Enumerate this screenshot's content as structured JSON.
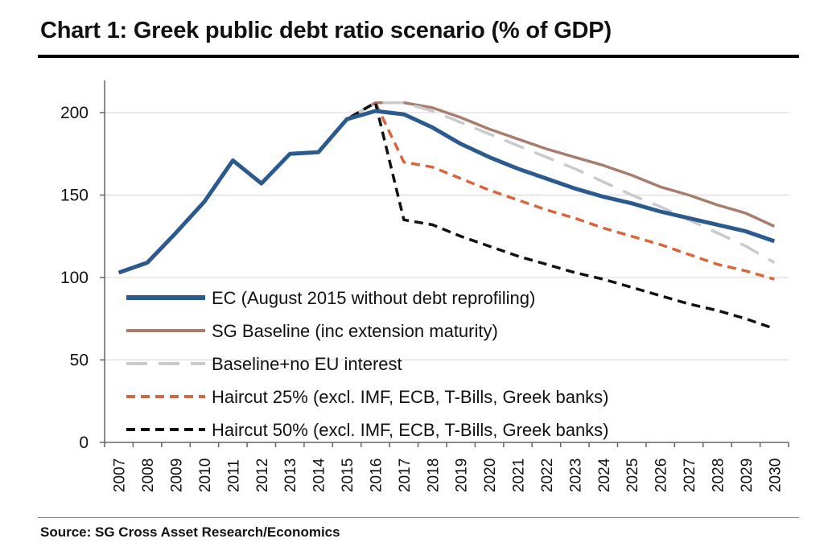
{
  "title": "Chart 1: Greek public debt ratio scenario (% of GDP)",
  "source": "Source: SG Cross Asset Research/Economics",
  "chart_data": {
    "type": "line",
    "title": "Chart 1: Greek public debt ratio scenario (% of GDP)",
    "xlabel": "",
    "ylabel": "",
    "ylim": [
      0,
      215
    ],
    "yticks": [
      0,
      50,
      100,
      150,
      200
    ],
    "grid": true,
    "legend_position": "bottom-left",
    "x": [
      "2007",
      "2008",
      "2009",
      "2010",
      "2011",
      "2012",
      "2013",
      "2014",
      "2015",
      "2016",
      "2017",
      "2018",
      "2019",
      "2020",
      "2021",
      "2022",
      "2023",
      "2024",
      "2025",
      "2026",
      "2027",
      "2028",
      "2029",
      "2030"
    ],
    "series": [
      {
        "name": "EC (August 2015 without debt reprofiling)",
        "color": "#2b5a8e",
        "dash": "solid",
        "values": [
          103,
          109,
          127,
          146,
          171,
          157,
          175,
          176,
          196,
          201,
          199,
          191,
          181,
          173,
          166,
          160,
          154,
          149,
          145,
          140,
          136,
          132,
          128,
          122
        ]
      },
      {
        "name": "SG Baseline (inc extension maturity)",
        "color": "#a87d6e",
        "dash": "solid",
        "values": [
          103,
          109,
          127,
          146,
          171,
          157,
          175,
          176,
          196,
          206,
          206,
          203,
          197,
          190,
          184,
          178,
          173,
          168,
          162,
          155,
          150,
          144,
          139,
          131
        ]
      },
      {
        "name": "Baseline+no EU interest",
        "color": "#c9cacf",
        "dash": "long",
        "values": [
          103,
          109,
          127,
          146,
          171,
          157,
          175,
          176,
          196,
          206,
          206,
          201,
          194,
          187,
          180,
          173,
          166,
          158,
          150,
          143,
          135,
          127,
          119,
          109
        ]
      },
      {
        "name": "Haircut 25% (excl. IMF, ECB, T-Bills, Greek banks)",
        "color": "#d9653d",
        "dash": "medium",
        "values": [
          103,
          109,
          127,
          146,
          171,
          157,
          175,
          176,
          196,
          206,
          170,
          167,
          160,
          153,
          147,
          141,
          136,
          130,
          125,
          120,
          114,
          108,
          104,
          99
        ]
      },
      {
        "name": "Haircut 50% (excl. IMF, ECB, T-Bills, Greek banks)",
        "color": "#111111",
        "dash": "medium",
        "values": [
          103,
          109,
          127,
          146,
          171,
          157,
          175,
          176,
          196,
          206,
          135,
          132,
          125,
          119,
          113,
          108,
          103,
          99,
          94,
          89,
          84,
          80,
          75,
          69
        ]
      }
    ]
  }
}
